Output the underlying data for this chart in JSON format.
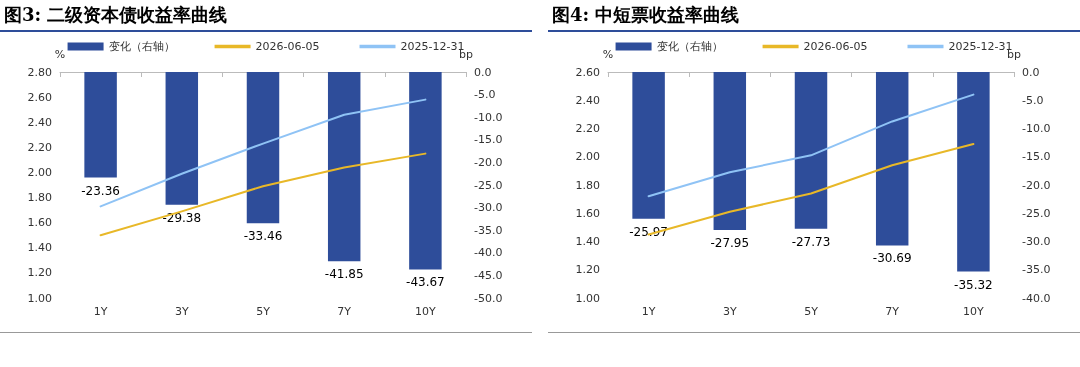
{
  "chart_data": [
    {
      "type": "bar",
      "title": "图3: 二级资本债收益率曲线",
      "ylabel": "%",
      "y2label": "bp",
      "categories": [
        "1Y",
        "3Y",
        "5Y",
        "7Y",
        "10Y"
      ],
      "series": [
        {
          "name": "变化（右轴）",
          "axis": "y2",
          "color": "#2e4d9a",
          "values": [
            -23.36,
            -29.38,
            -33.46,
            -41.85,
            -43.67
          ],
          "value_labels": [
            "-23.36",
            "-29.38",
            "-33.46",
            "-41.85",
            "-43.67"
          ]
        },
        {
          "name": "2026-06-05",
          "type": "line",
          "color": "#e8b828",
          "values": [
            1.5,
            1.69,
            1.89,
            2.04,
            2.15
          ]
        },
        {
          "name": "2025-12-31",
          "type": "line",
          "color": "#8fc3f5",
          "values": [
            1.73,
            1.99,
            2.23,
            2.46,
            2.58
          ]
        }
      ],
      "ylim": [
        1.0,
        2.8
      ],
      "yticks": [
        {
          "value": 1.0,
          "label": "1.00"
        },
        {
          "value": 1.2,
          "label": "1.20"
        },
        {
          "value": 1.4,
          "label": "1.40"
        },
        {
          "value": 1.6,
          "label": "1.60"
        },
        {
          "value": 1.8,
          "label": "1.80"
        },
        {
          "value": 2.0,
          "label": "2.00"
        },
        {
          "value": 2.2,
          "label": "2.20"
        },
        {
          "value": 2.4,
          "label": "2.40"
        },
        {
          "value": 2.6,
          "label": "2.60"
        },
        {
          "value": 2.8,
          "label": "2.80"
        }
      ],
      "y2lim": [
        -50,
        0
      ],
      "y2ticks": [
        {
          "value": -50,
          "label": "-50.0"
        },
        {
          "value": -45,
          "label": "-45.0"
        },
        {
          "value": -40,
          "label": "-40.0"
        },
        {
          "value": -35,
          "label": "-35.0"
        },
        {
          "value": -30,
          "label": "-30.0"
        },
        {
          "value": -25,
          "label": "-25.0"
        },
        {
          "value": -20,
          "label": "-20.0"
        },
        {
          "value": -15,
          "label": "-15.0"
        },
        {
          "value": -10,
          "label": "-10.0"
        },
        {
          "value": -5,
          "label": "-5.0"
        },
        {
          "value": 0,
          "label": "0.0"
        }
      ],
      "legend": "top",
      "grid": false,
      "marker": "none",
      "line_style": "solid"
    },
    {
      "type": "bar",
      "title": "图4: 中短票收益率曲线",
      "ylabel": "%",
      "y2label": "bp",
      "categories": [
        "1Y",
        "3Y",
        "5Y",
        "7Y",
        "10Y"
      ],
      "series": [
        {
          "name": "变化（右轴）",
          "axis": "y2",
          "color": "#2e4d9a",
          "values": [
            -25.97,
            -27.95,
            -27.73,
            -30.69,
            -35.32
          ],
          "value_labels": [
            "-25.97",
            "-27.95",
            "-27.73",
            "-30.69",
            "-35.32"
          ]
        },
        {
          "name": "2026-06-05",
          "type": "line",
          "color": "#e8b828",
          "values": [
            1.45,
            1.61,
            1.74,
            1.94,
            2.09
          ]
        },
        {
          "name": "2025-12-31",
          "type": "line",
          "color": "#8fc3f5",
          "values": [
            1.72,
            1.89,
            2.01,
            2.25,
            2.44
          ]
        }
      ],
      "ylim": [
        1.0,
        2.6
      ],
      "yticks": [
        {
          "value": 1.0,
          "label": "1.00"
        },
        {
          "value": 1.2,
          "label": "1.20"
        },
        {
          "value": 1.4,
          "label": "1.40"
        },
        {
          "value": 1.6,
          "label": "1.60"
        },
        {
          "value": 1.8,
          "label": "1.80"
        },
        {
          "value": 2.0,
          "label": "2.00"
        },
        {
          "value": 2.2,
          "label": "2.20"
        },
        {
          "value": 2.4,
          "label": "2.40"
        },
        {
          "value": 2.6,
          "label": "2.60"
        }
      ],
      "y2lim": [
        -40,
        0
      ],
      "y2ticks": [
        {
          "value": -40,
          "label": "-40.0"
        },
        {
          "value": -35,
          "label": "-35.0"
        },
        {
          "value": -30,
          "label": "-30.0"
        },
        {
          "value": -25,
          "label": "-25.0"
        },
        {
          "value": -20,
          "label": "-20.0"
        },
        {
          "value": -15,
          "label": "-15.0"
        },
        {
          "value": -10,
          "label": "-10.0"
        },
        {
          "value": -5,
          "label": "-5.0"
        },
        {
          "value": 0,
          "label": "0.0"
        }
      ],
      "legend": "top",
      "grid": false,
      "marker": "none",
      "line_style": "solid"
    }
  ]
}
